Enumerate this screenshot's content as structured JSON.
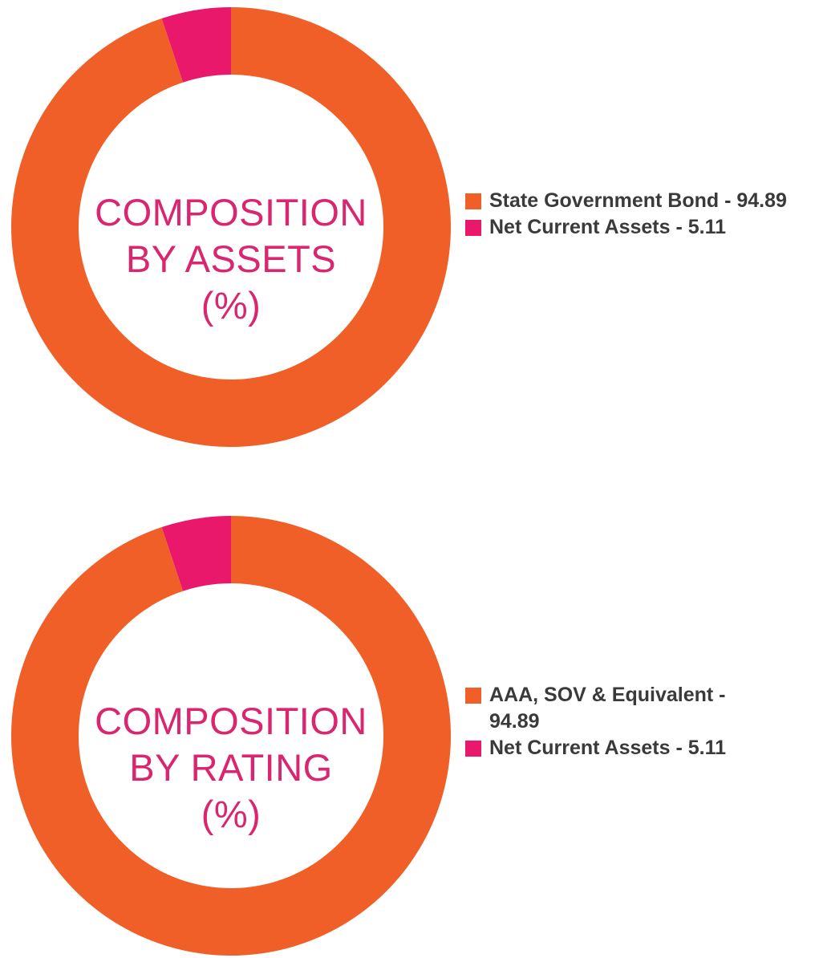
{
  "colors": {
    "primary_segment": "#f15f28",
    "secondary_segment": "#ea186a",
    "title_text": "#d9266f",
    "legend_text": "#3a3a3a"
  },
  "chart_data": [
    {
      "type": "pie",
      "variant": "donut",
      "center_title": [
        "COMPOSITION",
        "BY ASSETS",
        "(%)"
      ],
      "legend_position": "right",
      "slices": [
        {
          "label": "State Government Bond - 94.89",
          "value": 94.89,
          "color": "#f15f28"
        },
        {
          "label": "Net Current Assets - 5.11",
          "value": 5.11,
          "color": "#ea186a"
        }
      ]
    },
    {
      "type": "pie",
      "variant": "donut",
      "center_title": [
        "COMPOSITION",
        "BY RATING",
        "(%)"
      ],
      "legend_position": "right",
      "slices": [
        {
          "label": "AAA, SOV & Equivalent - 94.89",
          "value": 94.89,
          "color": "#f15f28"
        },
        {
          "label": "Net Current Assets - 5.11",
          "value": 5.11,
          "color": "#ea186a"
        }
      ]
    }
  ]
}
